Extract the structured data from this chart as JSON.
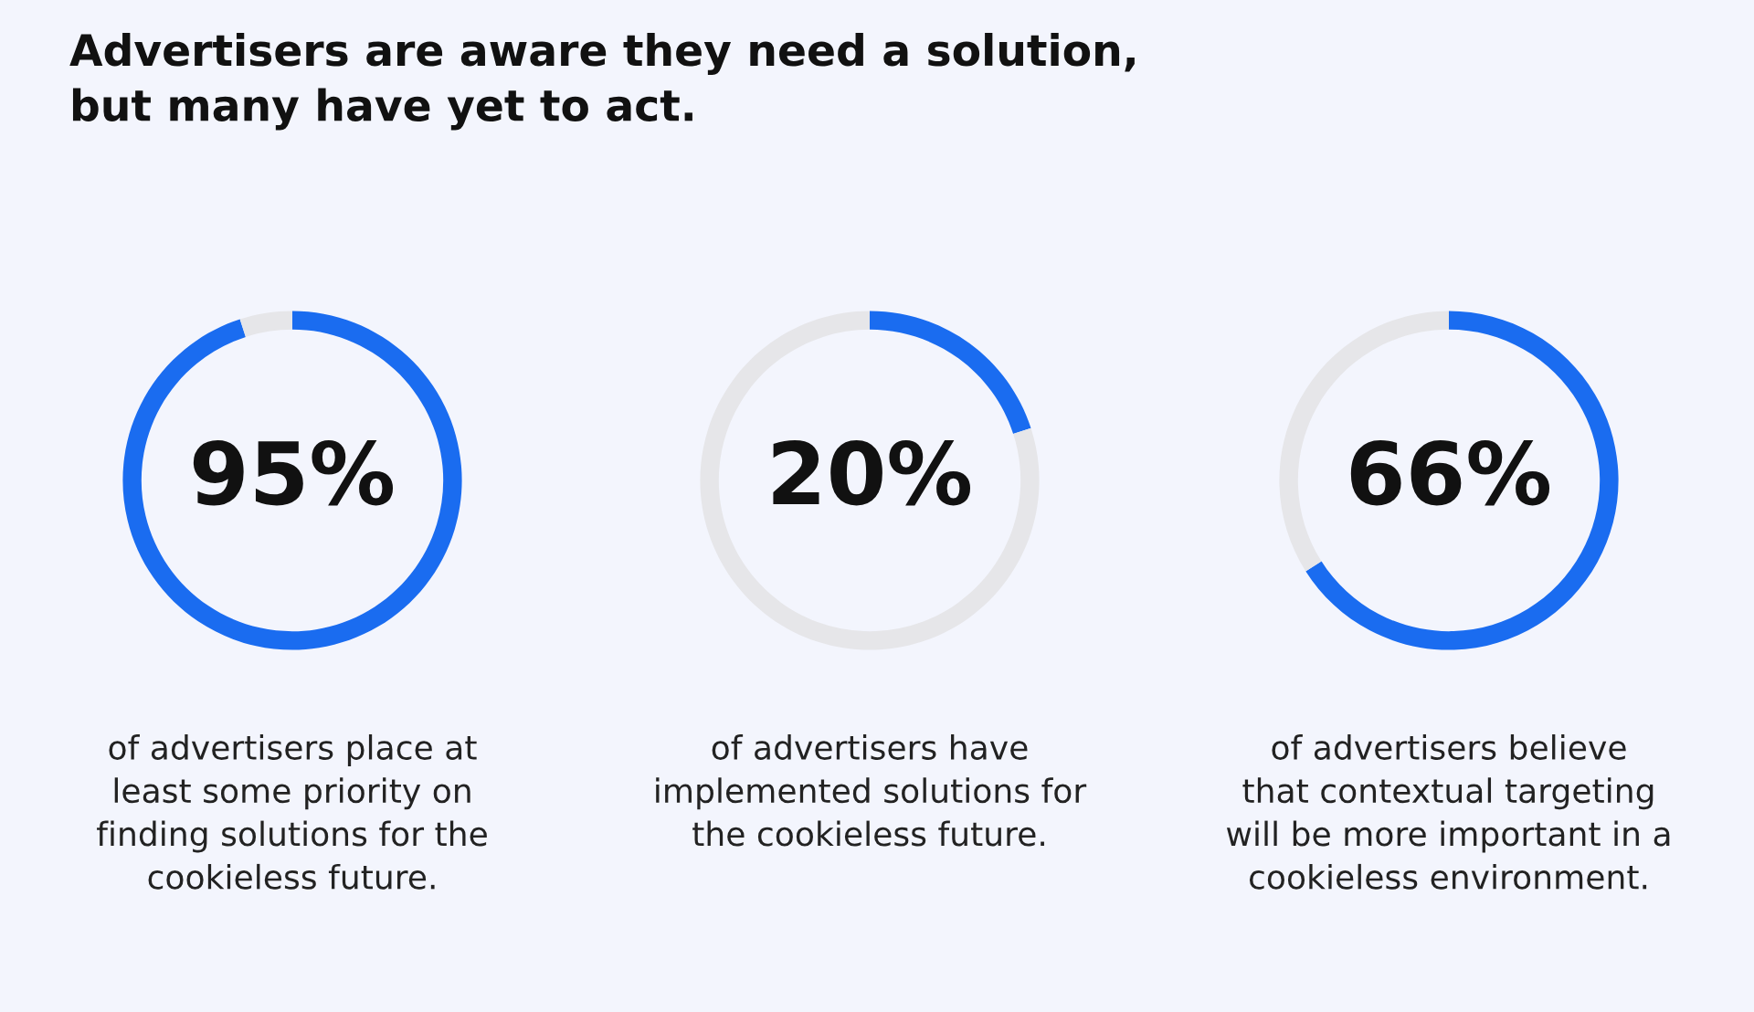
{
  "chart_data": [
    {
      "type": "donut",
      "title": "Advertisers are aware they need a solution,\nbut many have yet to act.",
      "categories": [
        null,
        null
      ],
      "values": [
        95,
        5
      ],
      "colors": [
        "#1a6cf0",
        "#e6e6e9"
      ],
      "value_labels": [
        "95%",
        null
      ],
      "annotations": [
        "of advertisers place at\nleast some priority on\nfinding solutions for the\ncookieless future."
      ]
    },
    {
      "type": "donut",
      "categories": [
        null,
        null
      ],
      "values": [
        20,
        80
      ],
      "colors": [
        "#1a6cf0",
        "#e6e6e9"
      ],
      "value_labels": [
        "20%",
        null
      ],
      "annotations": [
        "of advertisers have\nimplemented solutions for\nthe cookieless future."
      ]
    },
    {
      "type": "donut",
      "categories": [
        null,
        null
      ],
      "values": [
        66,
        34
      ],
      "colors": [
        "#1a6cf0",
        "#e6e6e9"
      ],
      "value_labels": [
        "66%",
        null
      ],
      "annotations": [
        "of advertisers believe\nthat contextual targeting\nwill be more important in a\ncookieless environment."
      ]
    }
  ]
}
